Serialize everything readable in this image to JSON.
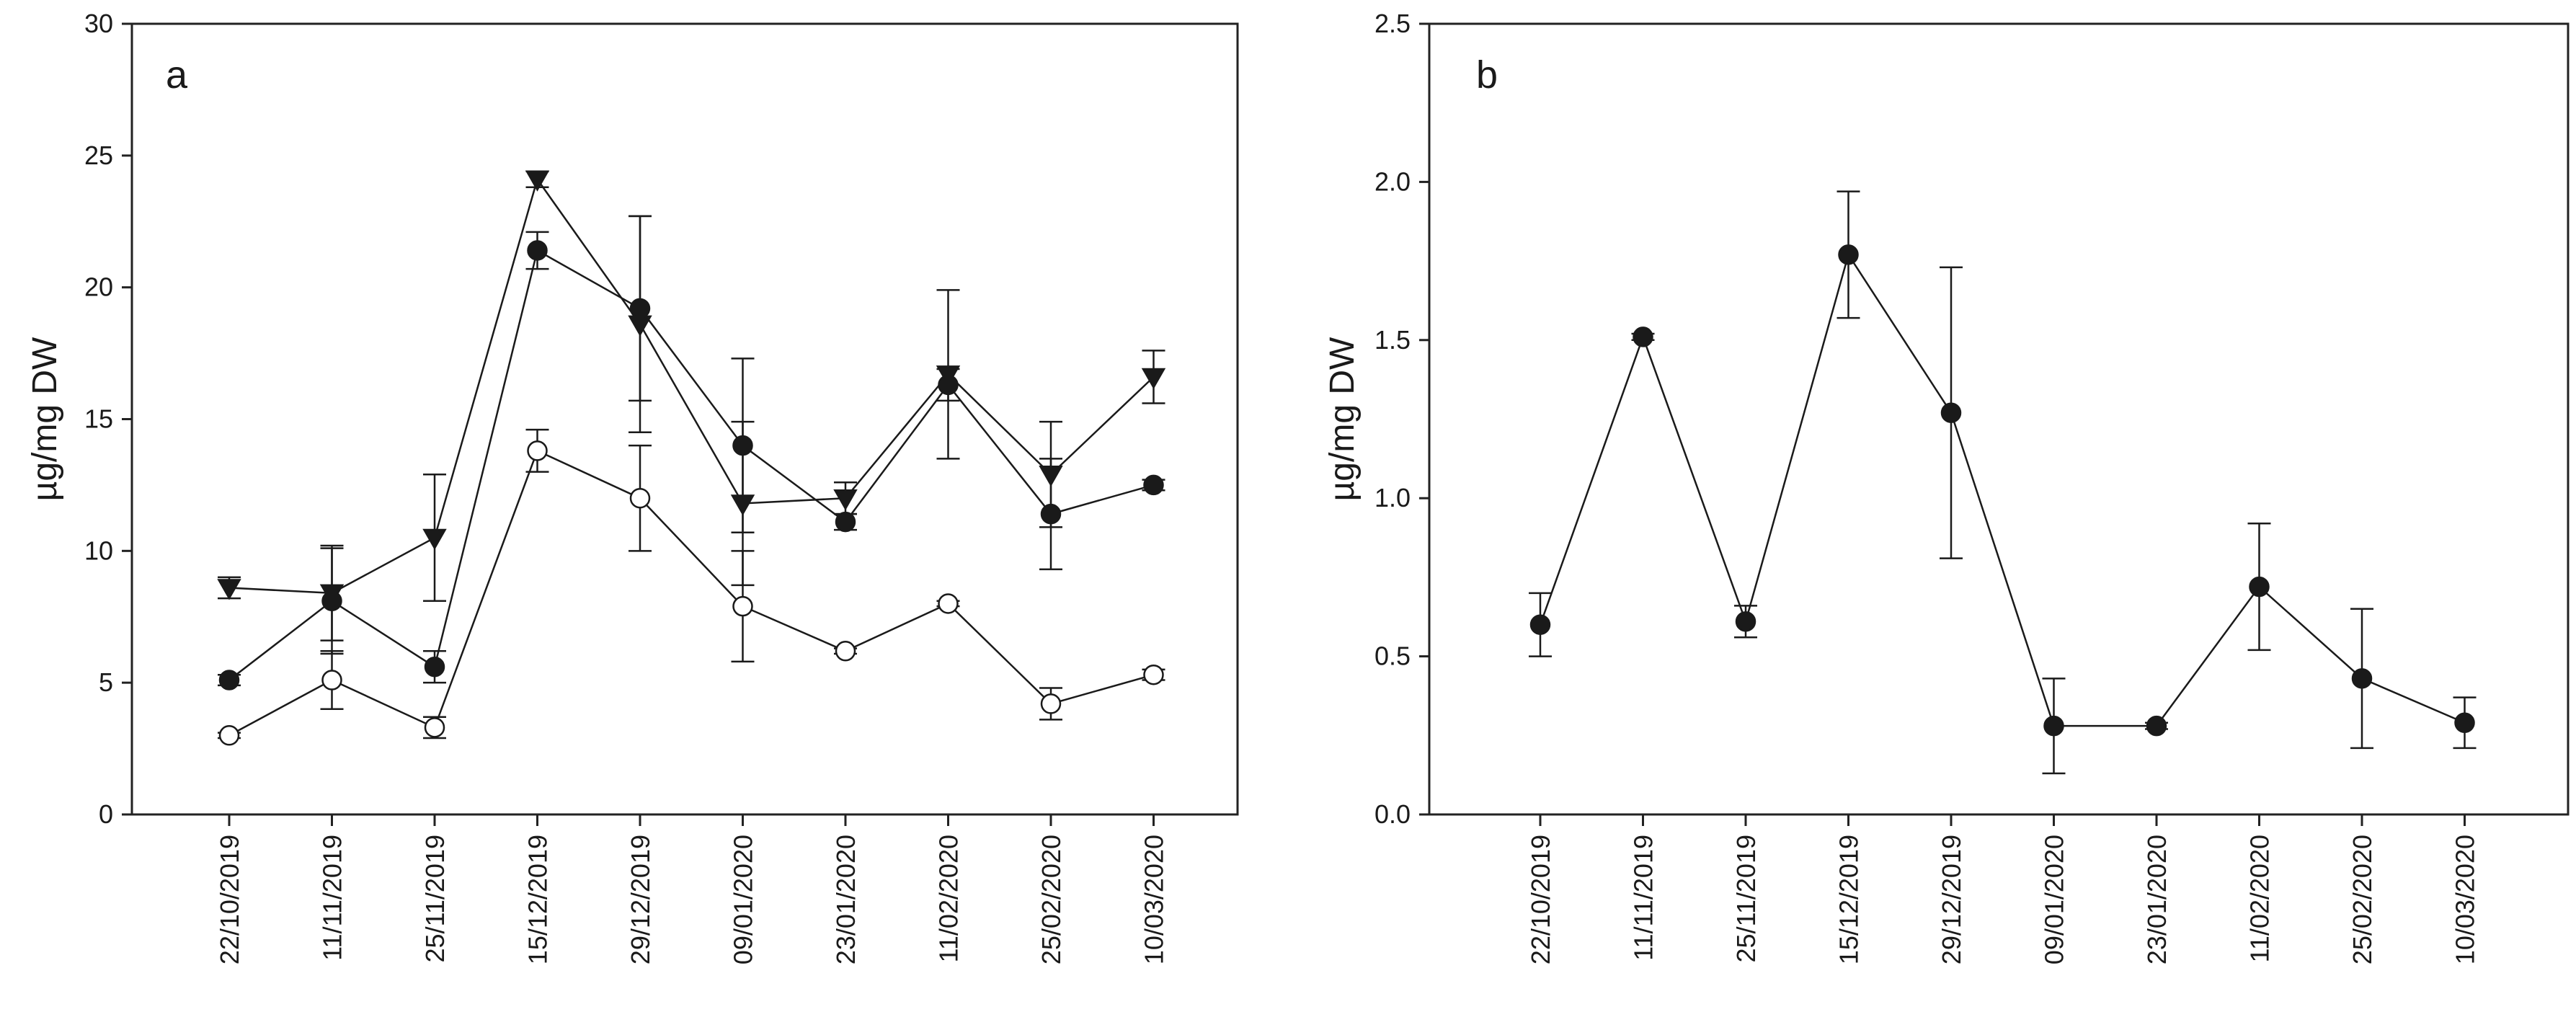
{
  "chart_data": [
    {
      "type": "line",
      "panel_label": "a",
      "ylabel": "µg/mg DW",
      "xlabel": "",
      "ylim": [
        0,
        30
      ],
      "yticks": [
        "0",
        "5",
        "10",
        "15",
        "20",
        "25",
        "30"
      ],
      "ytick_values": [
        0,
        5,
        10,
        15,
        20,
        25,
        30
      ],
      "categories": [
        "22/10/2019",
        "11/11/2019",
        "25/11/2019",
        "15/12/2019",
        "29/12/2019",
        "09/01/2020",
        "23/01/2020",
        "11/02/2020",
        "25/02/2020",
        "10/03/2020"
      ],
      "series": [
        {
          "name": "triangle-down",
          "marker": "triangle-down",
          "fill": "#1a1a1a",
          "values": [
            8.6,
            8.4,
            10.5,
            24.1,
            18.6,
            11.8,
            12.0,
            16.7,
            12.9,
            16.6
          ],
          "errors": [
            0.4,
            1.8,
            2.4,
            0.3,
            4.1,
            3.1,
            0.6,
            3.2,
            2.0,
            1.0
          ]
        },
        {
          "name": "filled-circle",
          "marker": "circle",
          "fill": "#1a1a1a",
          "values": [
            5.1,
            8.1,
            5.6,
            21.4,
            19.2,
            14.0,
            11.1,
            16.3,
            11.4,
            12.5
          ],
          "errors": [
            0.2,
            2.0,
            0.6,
            0.7,
            3.5,
            3.3,
            0.3,
            0.6,
            2.1,
            0.2
          ]
        },
        {
          "name": "open-circle",
          "marker": "circle",
          "fill": "#ffffff",
          "values": [
            3.0,
            5.1,
            3.3,
            13.8,
            12.0,
            7.9,
            6.2,
            8.0,
            4.2,
            5.3
          ],
          "errors": [
            0.1,
            1.1,
            0.4,
            0.8,
            2.0,
            2.1,
            0.1,
            0.1,
            0.6,
            0.2
          ]
        }
      ]
    },
    {
      "type": "line",
      "panel_label": "b",
      "ylabel": "µg/mg DW",
      "xlabel": "",
      "ylim": [
        0,
        2.5
      ],
      "yticks": [
        "0.0",
        "0.5",
        "1.0",
        "1.5",
        "2.0",
        "2.5"
      ],
      "ytick_values": [
        0,
        0.5,
        1.0,
        1.5,
        2.0,
        2.5
      ],
      "categories": [
        "22/10/2019",
        "11/11/2019",
        "25/11/2019",
        "15/12/2019",
        "29/12/2019",
        "09/01/2020",
        "23/01/2020",
        "11/02/2020",
        "25/02/2020",
        "10/03/2020"
      ],
      "series": [
        {
          "name": "filled-circle",
          "marker": "circle",
          "fill": "#1a1a1a",
          "values": [
            0.6,
            1.51,
            0.61,
            1.77,
            1.27,
            0.28,
            0.28,
            0.72,
            0.43,
            0.29
          ],
          "errors": [
            0.1,
            0.01,
            0.05,
            0.2,
            0.46,
            0.15,
            0.01,
            0.2,
            0.22,
            0.08
          ]
        }
      ]
    }
  ]
}
